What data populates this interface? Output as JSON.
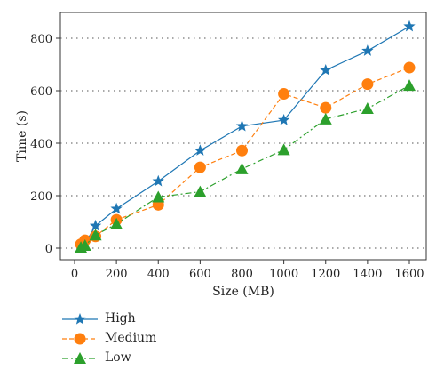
{
  "chart_data": {
    "type": "line",
    "xlabel": "Size (MB)",
    "ylabel": "Time (s)",
    "x_ticks": [
      0,
      200,
      400,
      600,
      800,
      1000,
      1200,
      1400,
      1600
    ],
    "y_ticks": [
      0,
      200,
      400,
      600,
      800
    ],
    "grid": "horizontal dotted",
    "legend_position": "below",
    "series": [
      {
        "name": "High",
        "color": "#1f77b4",
        "marker": "star",
        "linestyle": "solid",
        "points": [
          [
            30,
            5
          ],
          [
            50,
            18
          ],
          [
            100,
            85
          ],
          [
            200,
            150
          ],
          [
            400,
            255
          ],
          [
            600,
            372
          ],
          [
            800,
            465
          ],
          [
            1000,
            488
          ],
          [
            1200,
            678
          ],
          [
            1400,
            752
          ],
          [
            1600,
            845
          ]
        ]
      },
      {
        "name": "Medium",
        "color": "#ff7f0e",
        "marker": "circle",
        "linestyle": "dashed",
        "points": [
          [
            30,
            15
          ],
          [
            50,
            30
          ],
          [
            100,
            45
          ],
          [
            200,
            108
          ],
          [
            400,
            165
          ],
          [
            600,
            308
          ],
          [
            800,
            372
          ],
          [
            1000,
            588
          ],
          [
            1200,
            535
          ],
          [
            1400,
            625
          ],
          [
            1600,
            688
          ]
        ]
      },
      {
        "name": "Low",
        "color": "#2ca02c",
        "marker": "triangle",
        "linestyle": "dashdot",
        "points": [
          [
            30,
            3
          ],
          [
            50,
            10
          ],
          [
            100,
            50
          ],
          [
            200,
            92
          ],
          [
            400,
            195
          ],
          [
            600,
            215
          ],
          [
            800,
            302
          ],
          [
            1000,
            375
          ],
          [
            1200,
            492
          ],
          [
            1400,
            532
          ],
          [
            1600,
            620
          ]
        ]
      }
    ]
  }
}
